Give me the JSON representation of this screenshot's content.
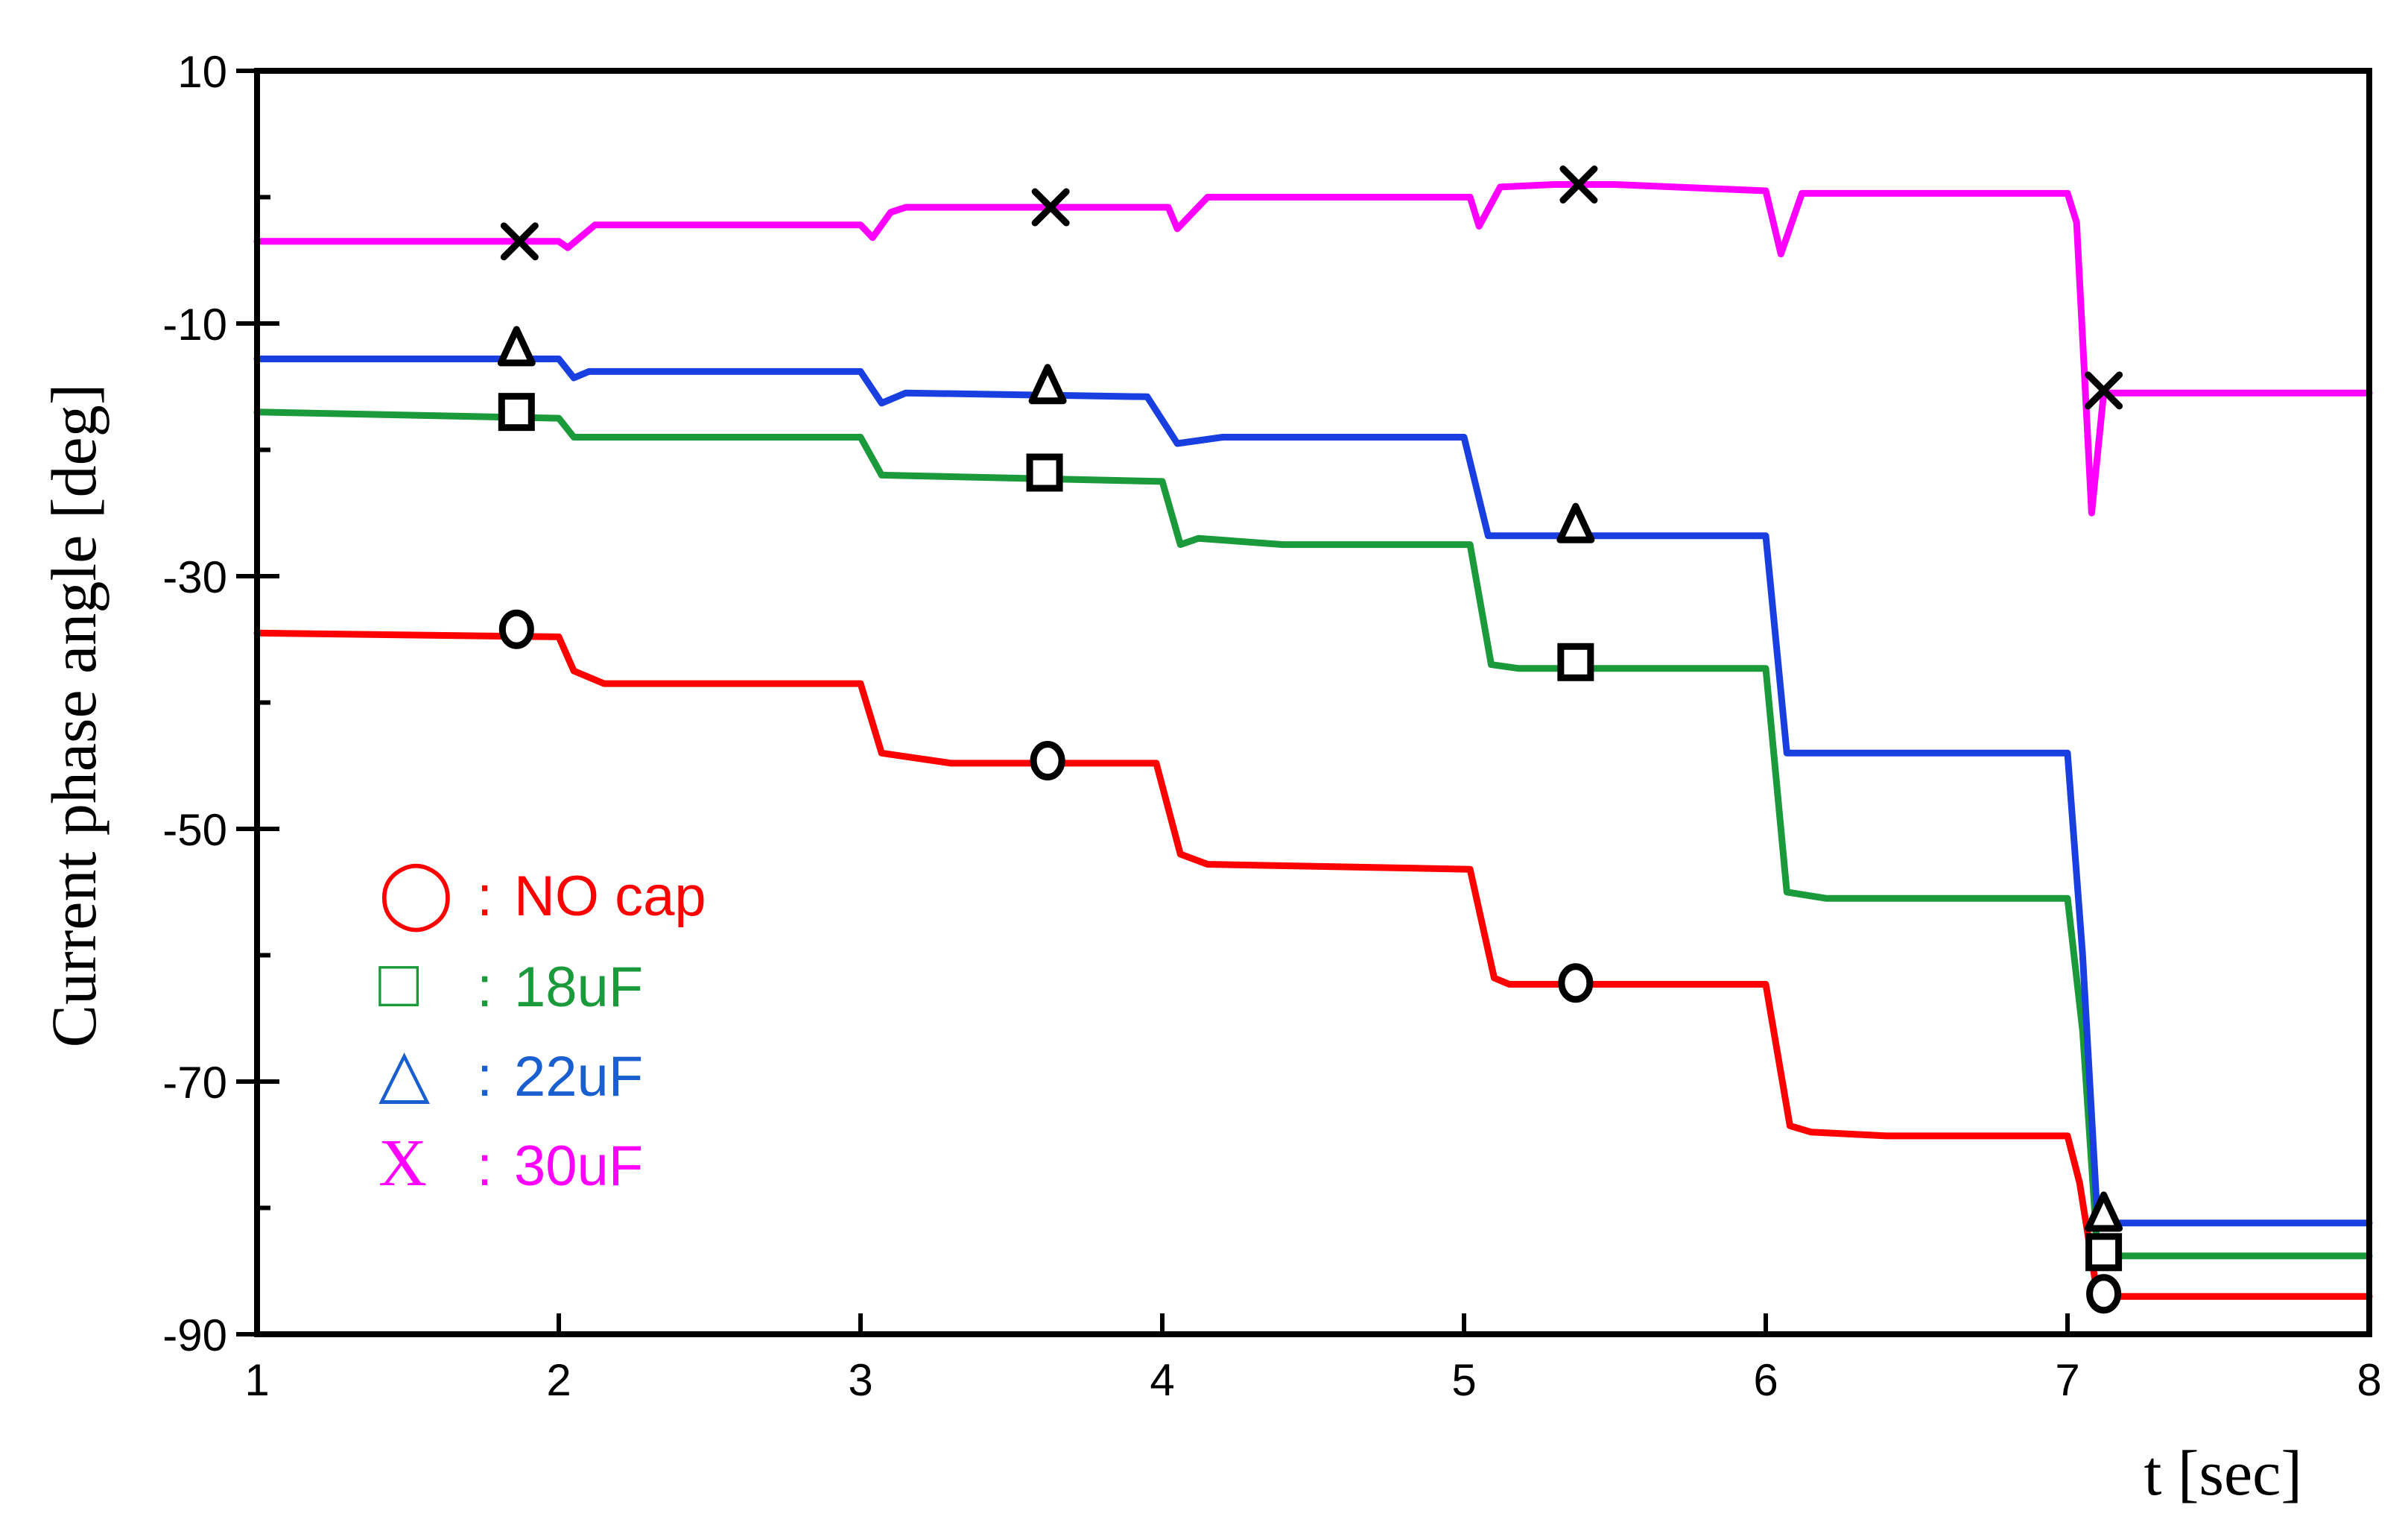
{
  "chart_data": {
    "type": "line",
    "xlabel": "t [sec]",
    "ylabel": "Current phase angle [deg]",
    "xlim": [
      1,
      8
    ],
    "ylim": [
      -90,
      10
    ],
    "x_ticks": [
      "1",
      "2",
      "3",
      "4",
      "5",
      "6",
      "7",
      "8"
    ],
    "y_ticks": [
      "10",
      "-10",
      "-30",
      "-50",
      "-70",
      "-90"
    ],
    "legend": [
      {
        "symbol": "◯",
        "sep": ":",
        "label": "NO cap",
        "color": "#ff0000",
        "marker": "circle"
      },
      {
        "symbol": "□",
        "sep": ":",
        "label": "18uF",
        "color": "#1a9a3a",
        "marker": "square"
      },
      {
        "symbol": "△",
        "sep": ":",
        "label": "22uF",
        "color": "#1a5fd0",
        "marker": "triangle"
      },
      {
        "symbol": "X",
        "sep": ":",
        "label": "30uF",
        "color": "#ff00ff",
        "marker": "x"
      }
    ],
    "legend_position": "bottom-left",
    "grid": false,
    "series": [
      {
        "name": "NO cap",
        "color": "#ff0000",
        "marker": "circle",
        "points": [
          [
            1.0,
            -34.5
          ],
          [
            2.0,
            -34.8
          ],
          [
            2.05,
            -37.5
          ],
          [
            2.15,
            -38.5
          ],
          [
            3.0,
            -38.5
          ],
          [
            3.07,
            -44.0
          ],
          [
            3.3,
            -44.8
          ],
          [
            3.98,
            -44.8
          ],
          [
            4.06,
            -52.0
          ],
          [
            4.15,
            -52.8
          ],
          [
            5.02,
            -53.2
          ],
          [
            5.1,
            -61.8
          ],
          [
            5.15,
            -62.3
          ],
          [
            6.0,
            -62.3
          ],
          [
            6.08,
            -73.5
          ],
          [
            6.15,
            -74.0
          ],
          [
            6.4,
            -74.3
          ],
          [
            7.0,
            -74.3
          ],
          [
            7.04,
            -78.0
          ],
          [
            7.1,
            -87.0
          ],
          [
            8.0,
            -87.0
          ]
        ],
        "markers": [
          [
            1.86,
            -34.2
          ],
          [
            3.62,
            -44.6
          ],
          [
            5.37,
            -62.2
          ],
          [
            7.12,
            -86.8
          ]
        ]
      },
      {
        "name": "18uF",
        "color": "#1a9a3a",
        "marker": "square",
        "points": [
          [
            1.0,
            -17.0
          ],
          [
            2.0,
            -17.5
          ],
          [
            2.05,
            -19.0
          ],
          [
            3.0,
            -19.0
          ],
          [
            3.07,
            -22.0
          ],
          [
            4.0,
            -22.5
          ],
          [
            4.06,
            -27.5
          ],
          [
            4.12,
            -27.0
          ],
          [
            4.4,
            -27.5
          ],
          [
            5.02,
            -27.5
          ],
          [
            5.09,
            -37.0
          ],
          [
            5.18,
            -37.3
          ],
          [
            6.0,
            -37.3
          ],
          [
            6.07,
            -55.0
          ],
          [
            6.2,
            -55.5
          ],
          [
            7.0,
            -55.5
          ],
          [
            7.05,
            -66.0
          ],
          [
            7.1,
            -83.8
          ],
          [
            8.0,
            -83.8
          ]
        ],
        "markers": [
          [
            1.86,
            -17.0
          ],
          [
            3.61,
            -21.8
          ],
          [
            5.37,
            -36.8
          ],
          [
            7.12,
            -83.5
          ]
        ]
      },
      {
        "name": "22uF",
        "color": "#1a3fe0",
        "marker": "triangle",
        "points": [
          [
            1.0,
            -12.8
          ],
          [
            2.0,
            -12.8
          ],
          [
            2.05,
            -14.3
          ],
          [
            2.1,
            -13.8
          ],
          [
            3.0,
            -13.8
          ],
          [
            3.07,
            -16.3
          ],
          [
            3.15,
            -15.5
          ],
          [
            3.95,
            -15.8
          ],
          [
            4.05,
            -19.5
          ],
          [
            4.2,
            -19.0
          ],
          [
            5.0,
            -19.0
          ],
          [
            5.08,
            -26.8
          ],
          [
            6.0,
            -26.8
          ],
          [
            6.07,
            -44.0
          ],
          [
            6.2,
            -44.0
          ],
          [
            7.0,
            -44.0
          ],
          [
            7.05,
            -60.0
          ],
          [
            7.1,
            -81.2
          ],
          [
            8.0,
            -81.2
          ]
        ],
        "markers": [
          [
            1.86,
            -12.0
          ],
          [
            3.62,
            -15.0
          ],
          [
            5.37,
            -26.0
          ],
          [
            7.12,
            -80.5
          ]
        ]
      },
      {
        "name": "30uF",
        "color": "#ff00ff",
        "marker": "x",
        "points": [
          [
            1.0,
            -3.5
          ],
          [
            2.0,
            -3.5
          ],
          [
            2.03,
            -4.0
          ],
          [
            2.12,
            -2.2
          ],
          [
            3.0,
            -2.2
          ],
          [
            3.04,
            -3.2
          ],
          [
            3.1,
            -1.2
          ],
          [
            3.15,
            -0.8
          ],
          [
            4.02,
            -0.8
          ],
          [
            4.05,
            -2.5
          ],
          [
            4.15,
            0.0
          ],
          [
            5.02,
            0.0
          ],
          [
            5.05,
            -2.3
          ],
          [
            5.12,
            0.8
          ],
          [
            5.3,
            1.0
          ],
          [
            5.5,
            1.0
          ],
          [
            6.0,
            0.5
          ],
          [
            6.05,
            -4.5
          ],
          [
            6.12,
            0.3
          ],
          [
            7.0,
            0.3
          ],
          [
            7.03,
            -2.0
          ],
          [
            7.08,
            -25.0
          ],
          [
            7.12,
            -15.5
          ],
          [
            8.0,
            -15.5
          ]
        ],
        "markers": [
          [
            1.87,
            -3.5
          ],
          [
            3.63,
            -0.8
          ],
          [
            5.38,
            1.0
          ],
          [
            7.12,
            -15.3
          ]
        ]
      }
    ]
  }
}
